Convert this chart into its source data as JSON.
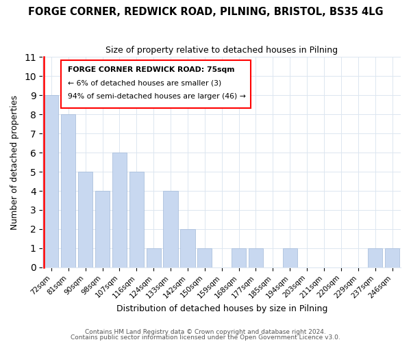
{
  "title": "FORGE CORNER, REDWICK ROAD, PILNING, BRISTOL, BS35 4LG",
  "subtitle": "Size of property relative to detached houses in Pilning",
  "xlabel": "Distribution of detached houses by size in Pilning",
  "ylabel": "Number of detached properties",
  "bar_color": "#c8d8f0",
  "bar_edge_color": "#a0b8d8",
  "highlight_color": "#ff0000",
  "categories": [
    "72sqm",
    "81sqm",
    "90sqm",
    "98sqm",
    "107sqm",
    "116sqm",
    "124sqm",
    "133sqm",
    "142sqm",
    "150sqm",
    "159sqm",
    "168sqm",
    "177sqm",
    "185sqm",
    "194sqm",
    "203sqm",
    "211sqm",
    "220sqm",
    "229sqm",
    "237sqm",
    "246sqm"
  ],
  "values": [
    9,
    8,
    5,
    4,
    6,
    5,
    1,
    4,
    2,
    1,
    0,
    1,
    1,
    0,
    1,
    0,
    0,
    0,
    0,
    1,
    1
  ],
  "annotation_title": "FORGE CORNER REDWICK ROAD: 75sqm",
  "annotation_line1": "← 6% of detached houses are smaller (3)",
  "annotation_line2": "94% of semi-detached houses are larger (46) →",
  "ylim": [
    0,
    11
  ],
  "yticks": [
    0,
    1,
    2,
    3,
    4,
    5,
    6,
    7,
    8,
    9,
    10,
    11
  ],
  "footer1": "Contains HM Land Registry data © Crown copyright and database right 2024.",
  "footer2": "Contains public sector information licensed under the Open Government Licence v3.0.",
  "grid_color": "#dce6f0"
}
